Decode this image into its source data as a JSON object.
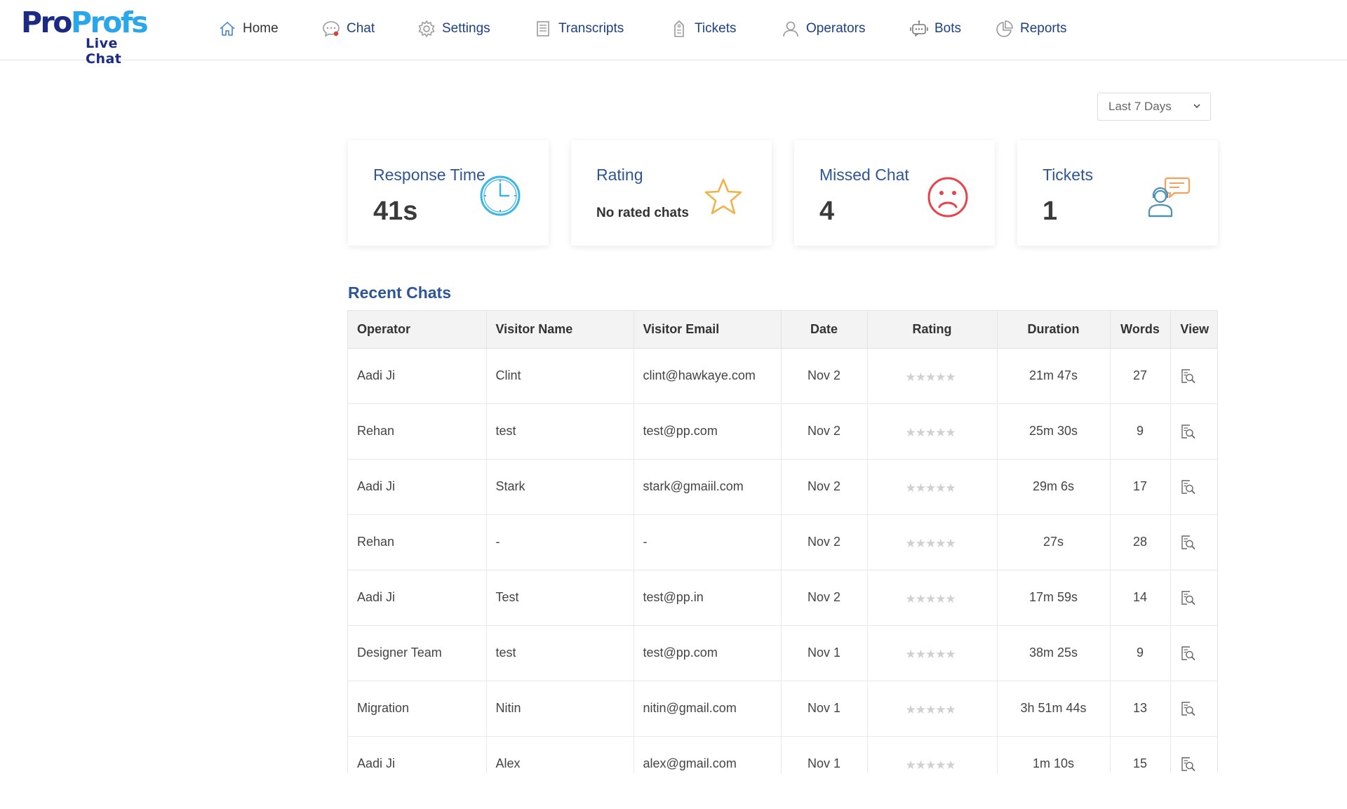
{
  "brand": {
    "logo_pro": "Pro",
    "logo_profs": "Profs",
    "logo_sub": "Live Chat"
  },
  "nav": {
    "items": [
      {
        "label": "Home",
        "icon": "home-icon"
      },
      {
        "label": "Chat",
        "icon": "chat-icon"
      },
      {
        "label": "Settings",
        "icon": "gear-icon"
      },
      {
        "label": "Transcripts",
        "icon": "document-icon"
      },
      {
        "label": "Tickets",
        "icon": "ticket-icon"
      },
      {
        "label": "Operators",
        "icon": "user-icon"
      },
      {
        "label": "Bots",
        "icon": "bot-icon"
      },
      {
        "label": "Reports",
        "icon": "pie-chart-icon"
      }
    ]
  },
  "filter": {
    "selected": "Last 7 Days"
  },
  "cards": {
    "response_time": {
      "title": "Response Time",
      "value": "41s",
      "icon": "clock-icon"
    },
    "rating": {
      "title": "Rating",
      "value": "No rated chats",
      "icon": "star-icon"
    },
    "missed_chat": {
      "title": "Missed Chat",
      "value": "4",
      "icon": "sad-face-icon"
    },
    "tickets": {
      "title": "Tickets",
      "value": "1",
      "icon": "support-agent-icon"
    }
  },
  "recent_chats": {
    "title": "Recent Chats",
    "columns": [
      "Operator",
      "Visitor Name",
      "Visitor Email",
      "Date",
      "Rating",
      "Duration",
      "Words",
      "View"
    ],
    "rows": [
      {
        "operator": "Aadi Ji",
        "visitor_name": "Clint",
        "visitor_email": "clint@hawkaye.com",
        "date": "Nov 2",
        "rating_stars": "★★★★★",
        "duration": "21m 47s",
        "words": "27"
      },
      {
        "operator": "Rehan",
        "visitor_name": "test",
        "visitor_email": "test@pp.com",
        "date": "Nov 2",
        "rating_stars": "★★★★★",
        "duration": "25m 30s",
        "words": "9"
      },
      {
        "operator": "Aadi Ji",
        "visitor_name": "Stark",
        "visitor_email": "stark@gmaiil.com",
        "date": "Nov 2",
        "rating_stars": "★★★★★",
        "duration": "29m 6s",
        "words": "17"
      },
      {
        "operator": "Rehan",
        "visitor_name": "-",
        "visitor_email": "-",
        "date": "Nov 2",
        "rating_stars": "★★★★★",
        "duration": "27s",
        "words": "28"
      },
      {
        "operator": "Aadi Ji",
        "visitor_name": "Test",
        "visitor_email": "test@pp.in",
        "date": "Nov 2",
        "rating_stars": "★★★★★",
        "duration": "17m 59s",
        "words": "14"
      },
      {
        "operator": "Designer Team",
        "visitor_name": "test",
        "visitor_email": "test@pp.com",
        "date": "Nov 1",
        "rating_stars": "★★★★★",
        "duration": "38m 25s",
        "words": "9"
      },
      {
        "operator": "Migration",
        "visitor_name": "Nitin",
        "visitor_email": "nitin@gmail.com",
        "date": "Nov 1",
        "rating_stars": "★★★★★",
        "duration": "3h 51m 44s",
        "words": "13"
      },
      {
        "operator": "Aadi Ji",
        "visitor_name": "Alex",
        "visitor_email": "alex@gmail.com",
        "date": "Nov 1",
        "rating_stars": "★★★★★",
        "duration": "1m 10s",
        "words": "15"
      }
    ]
  },
  "colors": {
    "brand_dark": "#1b2a82",
    "brand_light": "#2aa6ea",
    "accent_blue": "#2d5597",
    "clock": "#3bb5e5",
    "star": "#f2b24a",
    "sad": "#e8424a",
    "ticket_chat": "#f5a05c",
    "ticket_person": "#4a90b8"
  }
}
